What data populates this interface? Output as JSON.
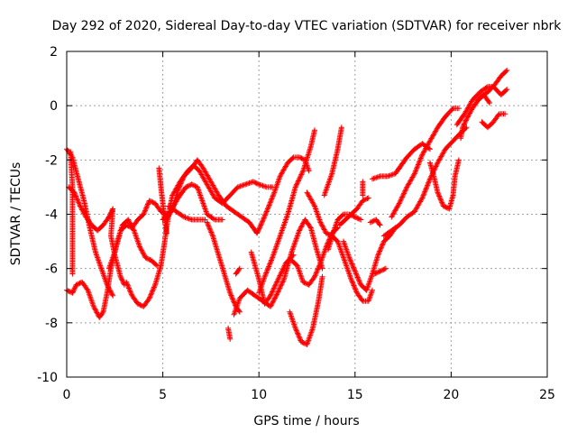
{
  "chart_data": {
    "type": "scatter",
    "title": "Day 292 of 2020, Sidereal Day-to-day VTEC variation (SDTVAR) for receiver nbrk",
    "xlabel": "GPS time / hours",
    "ylabel": "SDTVAR / TECUs",
    "xlim": [
      0,
      25
    ],
    "ylim": [
      -10,
      2
    ],
    "x_ticks": [
      0,
      5,
      10,
      15,
      20,
      25
    ],
    "y_ticks": [
      -10,
      -8,
      -6,
      -4,
      -2,
      0,
      2
    ],
    "x_tick_labels": [
      "0",
      "5",
      "10",
      "15",
      "20",
      "25"
    ],
    "y_tick_labels": [
      "-10",
      "-8",
      "-6",
      "-4",
      "-2",
      "0",
      "2"
    ],
    "grid": true,
    "marker": "+",
    "color": "#ff0000",
    "series": [
      {
        "points": [
          [
            0.0,
            -1.6
          ],
          [
            0.3,
            -1.9
          ],
          [
            0.6,
            -2.7
          ],
          [
            0.9,
            -3.5
          ],
          [
            1.2,
            -4.5
          ],
          [
            1.5,
            -5.4
          ],
          [
            1.8,
            -6.0
          ],
          [
            2.1,
            -6.6
          ],
          [
            2.4,
            -7.0
          ]
        ]
      },
      {
        "points": [
          [
            0.1,
            -3.0
          ],
          [
            0.4,
            -3.2
          ],
          [
            0.7,
            -3.7
          ],
          [
            1.0,
            -4.1
          ],
          [
            1.3,
            -4.4
          ],
          [
            1.6,
            -4.6
          ],
          [
            1.9,
            -4.4
          ],
          [
            2.2,
            -4.1
          ],
          [
            2.4,
            -3.8
          ],
          [
            2.3,
            -4.8
          ],
          [
            2.5,
            -5.5
          ],
          [
            2.8,
            -6.3
          ],
          [
            3.0,
            -6.6
          ]
        ]
      },
      {
        "points": [
          [
            0.0,
            -6.8
          ],
          [
            0.3,
            -6.9
          ],
          [
            0.5,
            -6.6
          ],
          [
            0.8,
            -6.5
          ],
          [
            1.1,
            -6.8
          ],
          [
            1.4,
            -7.4
          ],
          [
            1.7,
            -7.8
          ],
          [
            1.9,
            -7.6
          ],
          [
            2.1,
            -6.9
          ],
          [
            2.3,
            -6.0
          ],
          [
            2.6,
            -5.1
          ],
          [
            2.9,
            -4.4
          ],
          [
            3.2,
            -4.2
          ],
          [
            3.5,
            -4.6
          ],
          [
            3.8,
            -5.2
          ],
          [
            4.1,
            -5.6
          ],
          [
            4.4,
            -5.7
          ],
          [
            4.7,
            -5.9
          ]
        ]
      },
      {
        "points": [
          [
            0.2,
            -1.7
          ],
          [
            0.3,
            -3.0
          ],
          [
            0.3,
            -5.0
          ],
          [
            0.3,
            -6.2
          ]
        ]
      },
      {
        "points": [
          [
            2.2,
            -6.0
          ],
          [
            2.5,
            -5.4
          ],
          [
            2.8,
            -4.6
          ],
          [
            3.1,
            -4.4
          ],
          [
            3.4,
            -4.5
          ],
          [
            3.7,
            -4.2
          ],
          [
            4.0,
            -4.0
          ],
          [
            4.3,
            -3.5
          ],
          [
            4.6,
            -3.6
          ],
          [
            4.9,
            -3.9
          ],
          [
            5.2,
            -4.0
          ]
        ]
      },
      {
        "points": [
          [
            3.1,
            -6.5
          ],
          [
            3.4,
            -7.0
          ],
          [
            3.7,
            -7.3
          ],
          [
            4.0,
            -7.4
          ],
          [
            4.3,
            -7.1
          ],
          [
            4.6,
            -6.6
          ],
          [
            4.9,
            -5.9
          ],
          [
            5.1,
            -5.0
          ],
          [
            5.3,
            -4.0
          ],
          [
            5.5,
            -3.3
          ]
        ]
      },
      {
        "points": [
          [
            4.8,
            -2.3
          ],
          [
            4.9,
            -3.0
          ],
          [
            5.0,
            -3.6
          ],
          [
            5.1,
            -4.2
          ],
          [
            5.2,
            -4.7
          ]
        ]
      },
      {
        "points": [
          [
            5.2,
            -4.2
          ],
          [
            5.5,
            -3.8
          ],
          [
            5.8,
            -3.1
          ],
          [
            6.1,
            -2.6
          ],
          [
            6.5,
            -2.3
          ],
          [
            6.8,
            -2.0
          ],
          [
            7.1,
            -2.3
          ],
          [
            7.5,
            -2.8
          ],
          [
            7.9,
            -3.3
          ],
          [
            8.3,
            -3.7
          ],
          [
            8.7,
            -3.9
          ],
          [
            9.1,
            -4.1
          ],
          [
            9.5,
            -4.3
          ],
          [
            9.9,
            -4.7
          ],
          [
            10.1,
            -4.4
          ],
          [
            10.4,
            -3.9
          ],
          [
            10.8,
            -3.2
          ],
          [
            11.1,
            -2.6
          ],
          [
            11.5,
            -2.1
          ],
          [
            11.8,
            -1.9
          ],
          [
            12.1,
            -1.9
          ],
          [
            12.4,
            -2.0
          ],
          [
            12.6,
            -2.4
          ]
        ]
      },
      {
        "points": [
          [
            5.5,
            -3.3
          ],
          [
            5.9,
            -2.8
          ],
          [
            6.3,
            -2.4
          ],
          [
            6.6,
            -2.2
          ],
          [
            6.9,
            -2.4
          ],
          [
            7.3,
            -2.9
          ],
          [
            7.7,
            -3.4
          ],
          [
            8.1,
            -3.6
          ],
          [
            8.5,
            -3.3
          ],
          [
            8.9,
            -3.0
          ],
          [
            9.3,
            -2.9
          ],
          [
            9.7,
            -2.8
          ],
          [
            10.0,
            -2.9
          ],
          [
            10.4,
            -3.0
          ],
          [
            10.7,
            -3.0
          ]
        ]
      },
      {
        "points": [
          [
            5.0,
            -4.2
          ],
          [
            5.4,
            -3.9
          ],
          [
            5.8,
            -3.4
          ],
          [
            6.2,
            -3.0
          ],
          [
            6.5,
            -2.9
          ],
          [
            6.8,
            -3.0
          ],
          [
            7.1,
            -3.6
          ],
          [
            7.3,
            -4.0
          ],
          [
            7.7,
            -4.2
          ],
          [
            8.1,
            -4.2
          ]
        ]
      },
      {
        "points": [
          [
            5.3,
            -3.7
          ],
          [
            5.7,
            -3.9
          ],
          [
            6.1,
            -4.1
          ],
          [
            6.5,
            -4.2
          ],
          [
            6.9,
            -4.2
          ],
          [
            7.2,
            -4.2
          ]
        ]
      },
      {
        "points": [
          [
            7.3,
            -4.3
          ],
          [
            7.6,
            -4.8
          ],
          [
            7.9,
            -5.5
          ],
          [
            8.2,
            -6.2
          ],
          [
            8.5,
            -6.9
          ],
          [
            8.8,
            -7.4
          ],
          [
            9.0,
            -7.6
          ]
        ]
      },
      {
        "points": [
          [
            8.8,
            -6.2
          ],
          [
            9.0,
            -6.0
          ]
        ]
      },
      {
        "points": [
          [
            8.4,
            -8.2
          ],
          [
            8.5,
            -8.6
          ]
        ]
      },
      {
        "points": [
          [
            8.7,
            -7.7
          ],
          [
            9.0,
            -7.1
          ],
          [
            9.4,
            -6.8
          ],
          [
            9.8,
            -7.0
          ],
          [
            10.2,
            -7.2
          ],
          [
            10.6,
            -7.4
          ],
          [
            10.9,
            -7.0
          ],
          [
            11.3,
            -6.4
          ],
          [
            11.7,
            -5.4
          ],
          [
            12.1,
            -4.6
          ],
          [
            12.4,
            -4.2
          ],
          [
            12.7,
            -4.5
          ],
          [
            13.0,
            -5.3
          ],
          [
            13.3,
            -6.0
          ]
        ]
      },
      {
        "points": [
          [
            9.6,
            -5.4
          ],
          [
            10.0,
            -6.4
          ],
          [
            10.3,
            -7.3
          ],
          [
            10.6,
            -7.0
          ],
          [
            11.0,
            -6.4
          ],
          [
            11.4,
            -5.8
          ],
          [
            11.8,
            -5.5
          ]
        ]
      },
      {
        "points": [
          [
            10.0,
            -6.9
          ],
          [
            10.3,
            -6.3
          ],
          [
            10.7,
            -5.6
          ],
          [
            11.1,
            -4.8
          ],
          [
            11.5,
            -4.0
          ],
          [
            11.9,
            -3.0
          ],
          [
            12.3,
            -2.4
          ],
          [
            12.7,
            -1.5
          ],
          [
            12.9,
            -0.9
          ]
        ]
      },
      {
        "points": [
          [
            11.6,
            -7.6
          ],
          [
            11.9,
            -8.2
          ],
          [
            12.2,
            -8.7
          ],
          [
            12.5,
            -8.8
          ],
          [
            12.8,
            -8.2
          ],
          [
            13.1,
            -7.2
          ],
          [
            13.3,
            -6.3
          ]
        ]
      },
      {
        "points": [
          [
            11.7,
            -5.7
          ],
          [
            12.0,
            -5.9
          ],
          [
            12.3,
            -6.5
          ],
          [
            12.6,
            -6.6
          ],
          [
            12.9,
            -6.3
          ],
          [
            13.2,
            -5.8
          ],
          [
            13.5,
            -5.2
          ],
          [
            13.8,
            -4.7
          ],
          [
            14.1,
            -4.5
          ]
        ]
      },
      {
        "points": [
          [
            12.5,
            -3.2
          ],
          [
            12.9,
            -3.7
          ],
          [
            13.2,
            -4.3
          ],
          [
            13.5,
            -4.7
          ],
          [
            13.8,
            -4.8
          ],
          [
            14.1,
            -5.0
          ],
          [
            14.4,
            -5.6
          ],
          [
            14.8,
            -6.4
          ],
          [
            15.1,
            -6.9
          ],
          [
            15.4,
            -7.2
          ],
          [
            15.7,
            -7.2
          ],
          [
            15.9,
            -6.8
          ]
        ]
      },
      {
        "points": [
          [
            13.4,
            -3.3
          ],
          [
            13.8,
            -2.5
          ],
          [
            14.1,
            -1.6
          ],
          [
            14.3,
            -0.8
          ]
        ]
      },
      {
        "points": [
          [
            13.6,
            -5.3
          ],
          [
            13.9,
            -4.6
          ],
          [
            14.1,
            -4.2
          ],
          [
            14.4,
            -4.0
          ],
          [
            14.7,
            -4.0
          ],
          [
            15.0,
            -4.1
          ],
          [
            15.3,
            -4.2
          ]
        ]
      },
      {
        "points": [
          [
            14.2,
            -4.4
          ],
          [
            14.5,
            -4.2
          ],
          [
            14.8,
            -4.0
          ],
          [
            15.1,
            -3.8
          ],
          [
            15.4,
            -3.5
          ],
          [
            15.7,
            -3.4
          ]
        ]
      },
      {
        "points": [
          [
            14.4,
            -5.0
          ],
          [
            14.7,
            -5.6
          ],
          [
            15.0,
            -6.1
          ],
          [
            15.3,
            -6.6
          ],
          [
            15.6,
            -6.8
          ],
          [
            15.9,
            -6.2
          ],
          [
            16.2,
            -5.5
          ],
          [
            16.5,
            -5.0
          ],
          [
            16.8,
            -4.8
          ],
          [
            17.1,
            -4.5
          ]
        ]
      },
      {
        "points": [
          [
            15.4,
            -2.8
          ],
          [
            15.4,
            -3.3
          ]
        ]
      },
      {
        "points": [
          [
            15.8,
            -4.3
          ],
          [
            16.1,
            -4.2
          ],
          [
            16.3,
            -4.4
          ]
        ]
      },
      {
        "points": [
          [
            16.0,
            -6.2
          ],
          [
            16.3,
            -6.1
          ],
          [
            16.6,
            -6.0
          ]
        ]
      },
      {
        "points": [
          [
            15.9,
            -2.7
          ],
          [
            16.3,
            -2.6
          ],
          [
            16.7,
            -2.6
          ],
          [
            17.1,
            -2.5
          ],
          [
            17.3,
            -2.3
          ]
        ]
      },
      {
        "points": [
          [
            16.5,
            -4.8
          ],
          [
            16.9,
            -4.6
          ],
          [
            17.3,
            -4.4
          ],
          [
            17.7,
            -4.1
          ],
          [
            18.1,
            -3.9
          ],
          [
            18.5,
            -3.4
          ],
          [
            18.9,
            -2.7
          ],
          [
            19.3,
            -2.1
          ],
          [
            19.7,
            -1.6
          ],
          [
            20.1,
            -1.3
          ],
          [
            20.5,
            -1.0
          ],
          [
            20.8,
            -0.8
          ]
        ]
      },
      {
        "points": [
          [
            16.9,
            -4.1
          ],
          [
            17.3,
            -3.6
          ],
          [
            17.7,
            -3.0
          ],
          [
            18.1,
            -2.5
          ],
          [
            18.5,
            -1.8
          ],
          [
            18.9,
            -1.3
          ],
          [
            19.3,
            -0.8
          ],
          [
            19.7,
            -0.4
          ],
          [
            20.1,
            -0.1
          ],
          [
            20.4,
            -0.1
          ]
        ]
      },
      {
        "points": [
          [
            17.3,
            -2.3
          ],
          [
            17.7,
            -1.9
          ],
          [
            18.1,
            -1.6
          ],
          [
            18.5,
            -1.4
          ],
          [
            18.9,
            -1.6
          ]
        ]
      },
      {
        "points": [
          [
            18.9,
            -2.1
          ],
          [
            19.1,
            -2.6
          ],
          [
            19.3,
            -3.2
          ],
          [
            19.6,
            -3.7
          ],
          [
            19.9,
            -3.8
          ],
          [
            20.1,
            -3.3
          ],
          [
            20.2,
            -2.6
          ],
          [
            20.4,
            -2.0
          ]
        ]
      },
      {
        "points": [
          [
            20.3,
            -0.7
          ],
          [
            20.7,
            -0.3
          ],
          [
            21.1,
            0.2
          ],
          [
            21.5,
            0.5
          ],
          [
            21.9,
            0.7
          ],
          [
            22.2,
            0.7
          ],
          [
            22.6,
            0.4
          ],
          [
            22.9,
            0.6
          ]
        ]
      },
      {
        "points": [
          [
            20.5,
            -1.2
          ],
          [
            20.6,
            -0.8
          ],
          [
            20.8,
            -0.5
          ],
          [
            21.1,
            -0.1
          ],
          [
            21.5,
            0.3
          ],
          [
            21.9,
            0.5
          ],
          [
            22.3,
            0.8
          ],
          [
            22.6,
            1.1
          ],
          [
            22.9,
            1.3
          ]
        ]
      },
      {
        "points": [
          [
            21.6,
            -0.6
          ],
          [
            21.9,
            -0.8
          ],
          [
            22.2,
            -0.6
          ],
          [
            22.5,
            -0.3
          ],
          [
            22.8,
            -0.3
          ]
        ]
      },
      {
        "points": [
          [
            21.4,
            0.2
          ],
          [
            21.7,
            0.4
          ],
          [
            22.0,
            0.1
          ]
        ]
      }
    ]
  }
}
